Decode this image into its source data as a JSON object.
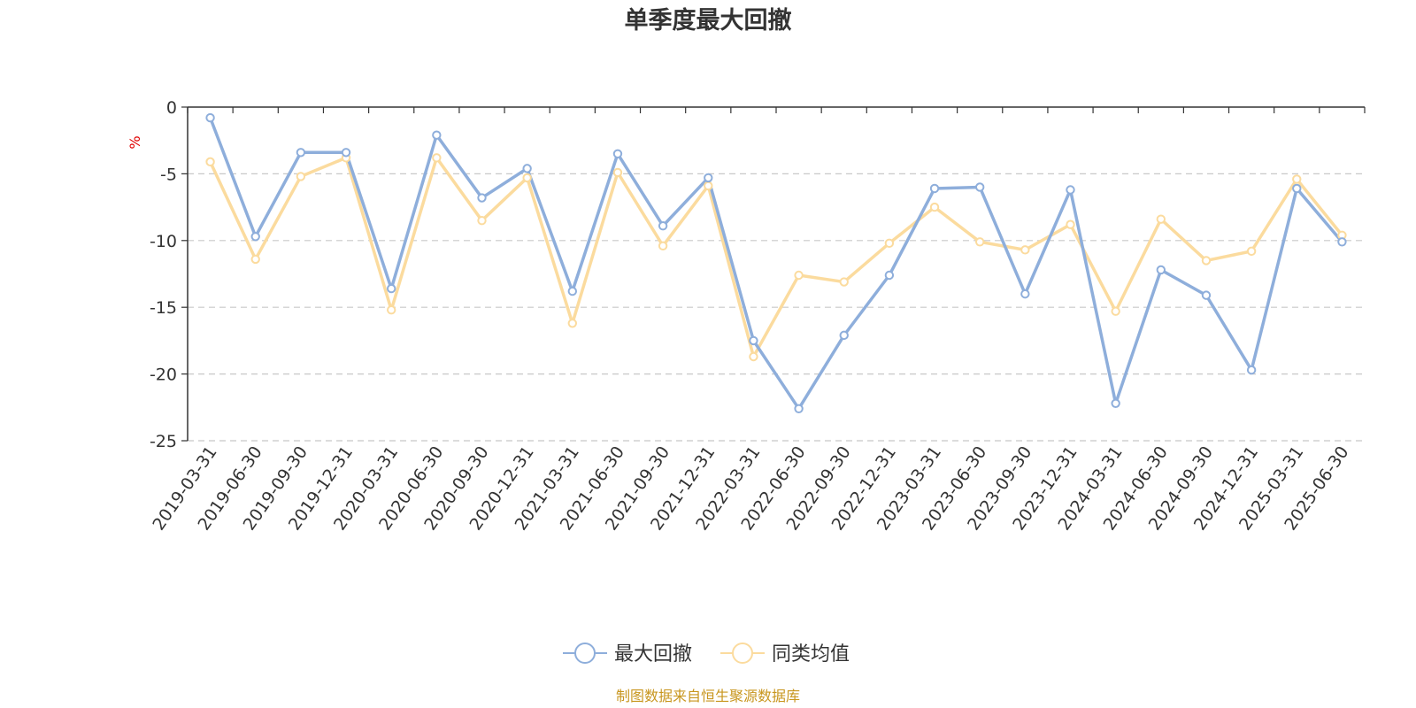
{
  "chart_data": {
    "type": "line",
    "title": "单季度最大回撤",
    "ylabel": "%",
    "ylim": [
      -25,
      0
    ],
    "yticks": [
      0,
      -5,
      -10,
      -15,
      -20,
      -25
    ],
    "grid": true,
    "legend_position": "bottom",
    "categories": [
      "2019-03-31",
      "2019-06-30",
      "2019-09-30",
      "2019-12-31",
      "2020-03-31",
      "2020-06-30",
      "2020-09-30",
      "2020-12-31",
      "2021-03-31",
      "2021-06-30",
      "2021-09-30",
      "2021-12-31",
      "2022-03-31",
      "2022-06-30",
      "2022-09-30",
      "2022-12-31",
      "2023-03-31",
      "2023-06-30",
      "2023-09-30",
      "2023-12-31",
      "2024-03-31",
      "2024-06-30",
      "2024-09-30",
      "2024-12-31",
      "2025-03-31",
      "2025-06-30"
    ],
    "series": [
      {
        "name": "最大回撤",
        "color": "#8eaedb",
        "values": [
          -0.8,
          -9.7,
          -3.4,
          -3.4,
          -13.6,
          -2.1,
          -6.8,
          -4.6,
          -13.8,
          -3.5,
          -8.9,
          -5.3,
          -17.5,
          -22.6,
          -17.1,
          -12.6,
          -6.1,
          -6.0,
          -14.0,
          -6.2,
          -22.2,
          -12.2,
          -14.1,
          -19.7,
          -6.1,
          -10.1
        ]
      },
      {
        "name": "同类均值",
        "color": "#fbdb9e",
        "values": [
          -4.1,
          -11.4,
          -5.2,
          -3.8,
          -15.2,
          -3.8,
          -8.5,
          -5.3,
          -16.2,
          -4.9,
          -10.4,
          -5.9,
          -18.7,
          -12.6,
          -13.1,
          -10.2,
          -7.5,
          -10.1,
          -10.7,
          -8.8,
          -15.3,
          -8.4,
          -11.5,
          -10.8,
          -5.4,
          -9.6
        ]
      }
    ],
    "source": "制图数据来自恒生聚源数据库"
  }
}
